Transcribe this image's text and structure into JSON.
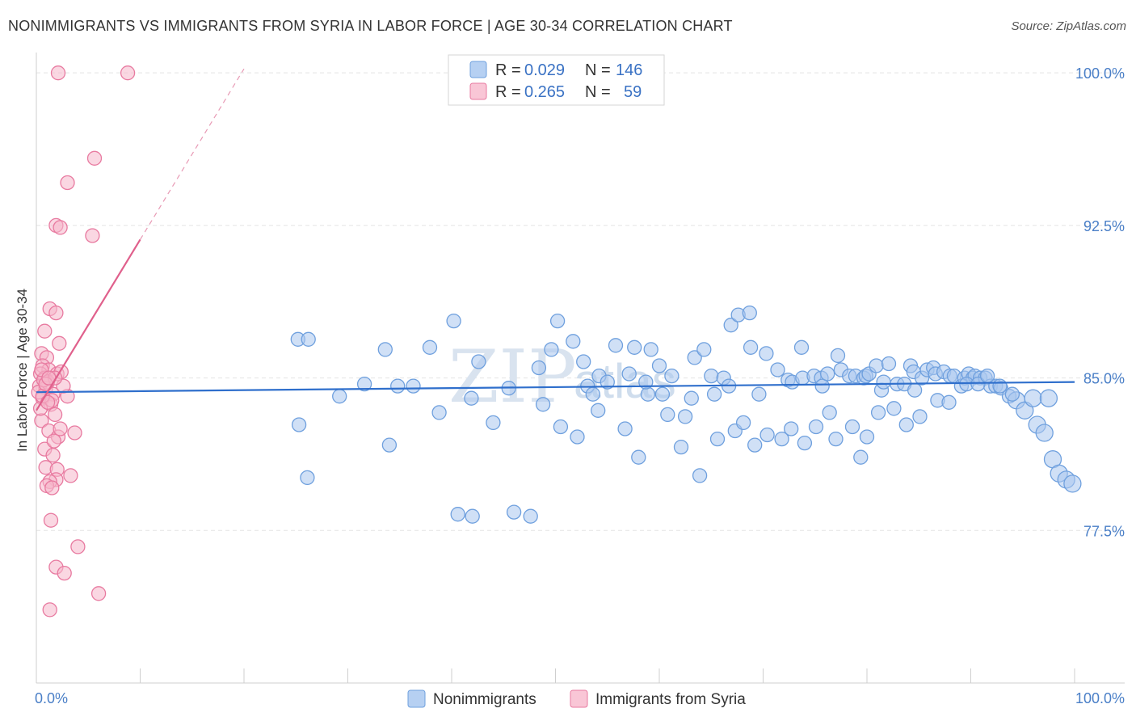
{
  "chart_data": {
    "type": "scatter",
    "title": "NONIMMIGRANTS VS IMMIGRANTS FROM SYRIA IN LABOR FORCE | AGE 30-34 CORRELATION CHART",
    "source": "Source: ZipAtlas.com",
    "ylabel": "In Labor Force | Age 30-34",
    "xlabel": "",
    "xlim": [
      0,
      100
    ],
    "ylim": [
      70.0,
      101.0
    ],
    "x_tick_labels": [
      "0.0%",
      "100.0%"
    ],
    "y_ticks": [
      77.5,
      85.0,
      92.5,
      100.0
    ],
    "y_tick_labels": [
      "77.5%",
      "85.0%",
      "92.5%",
      "100.0%"
    ],
    "watermark": {
      "main": "ZIP",
      "sub": "atlas"
    },
    "legend": [
      {
        "series": "Nonimmigrants",
        "r_label": "R =",
        "r": "0.029",
        "n_label": "N =",
        "n": "146"
      },
      {
        "series": "Immigrants from Syria",
        "r_label": "R =",
        "r": "0.265",
        "n_label": "N =",
        "n": "59"
      }
    ],
    "series": [
      {
        "name": "Nonimmigrants",
        "color": "#6fa0de",
        "fill": "#a9c7ee",
        "trend": {
          "x": [
            0,
            100
          ],
          "y": [
            84.3,
            84.8
          ]
        },
        "points": [
          [
            25.3,
            82.7
          ],
          [
            25.2,
            86.9
          ],
          [
            26.1,
            80.1
          ],
          [
            26.2,
            86.9
          ],
          [
            29.2,
            84.1
          ],
          [
            31.6,
            84.7
          ],
          [
            34.0,
            81.7
          ],
          [
            34.8,
            84.6
          ],
          [
            37.9,
            86.5
          ],
          [
            40.2,
            87.8
          ],
          [
            40.6,
            78.3
          ],
          [
            41.9,
            84.0
          ],
          [
            42.0,
            78.2
          ],
          [
            44.0,
            82.8
          ],
          [
            46.0,
            78.4
          ],
          [
            47.6,
            78.2
          ],
          [
            48.4,
            85.5
          ],
          [
            49.6,
            86.4
          ],
          [
            50.2,
            87.8
          ],
          [
            51.7,
            86.8
          ],
          [
            52.7,
            85.8
          ],
          [
            53.1,
            84.6
          ],
          [
            53.6,
            84.2
          ],
          [
            54.2,
            85.1
          ],
          [
            55.0,
            84.8
          ],
          [
            55.8,
            86.6
          ],
          [
            57.1,
            85.2
          ],
          [
            57.6,
            86.5
          ],
          [
            58.9,
            84.2
          ],
          [
            59.2,
            86.4
          ],
          [
            60.3,
            84.2
          ],
          [
            61.2,
            85.1
          ],
          [
            62.5,
            83.1
          ],
          [
            63.1,
            84.0
          ],
          [
            63.4,
            86.0
          ],
          [
            64.3,
            86.4
          ],
          [
            65.0,
            85.1
          ],
          [
            65.3,
            84.2
          ],
          [
            66.2,
            85.0
          ],
          [
            66.9,
            87.6
          ],
          [
            67.6,
            88.1
          ],
          [
            68.7,
            88.2
          ],
          [
            68.8,
            86.5
          ],
          [
            69.6,
            84.2
          ],
          [
            70.3,
            86.2
          ],
          [
            71.4,
            85.4
          ],
          [
            72.4,
            84.9
          ],
          [
            72.8,
            84.8
          ],
          [
            73.7,
            86.5
          ],
          [
            73.8,
            85.0
          ],
          [
            74.9,
            85.1
          ],
          [
            75.6,
            85.0
          ],
          [
            75.7,
            84.6
          ],
          [
            76.2,
            85.2
          ],
          [
            77.2,
            86.1
          ],
          [
            77.5,
            85.4
          ],
          [
            78.3,
            85.1
          ],
          [
            78.9,
            85.1
          ],
          [
            79.7,
            85.0
          ],
          [
            79.9,
            85.1
          ],
          [
            80.2,
            85.2
          ],
          [
            80.9,
            85.6
          ],
          [
            81.4,
            84.4
          ],
          [
            81.6,
            84.8
          ],
          [
            82.1,
            85.7
          ],
          [
            82.9,
            84.7
          ],
          [
            83.6,
            84.7
          ],
          [
            84.2,
            85.6
          ],
          [
            84.5,
            85.3
          ],
          [
            85.3,
            85.0
          ],
          [
            85.8,
            85.4
          ],
          [
            86.4,
            85.5
          ],
          [
            86.6,
            85.2
          ],
          [
            87.4,
            85.3
          ],
          [
            88.0,
            85.1
          ],
          [
            88.4,
            85.1
          ],
          [
            89.1,
            84.6
          ],
          [
            89.4,
            85.0
          ],
          [
            89.8,
            85.2
          ],
          [
            90.2,
            85.0
          ],
          [
            90.4,
            85.1
          ],
          [
            90.9,
            85.0
          ],
          [
            91.4,
            85.0
          ],
          [
            91.9,
            84.6
          ],
          [
            92.4,
            84.6
          ],
          [
            92.9,
            84.5
          ],
          [
            93.7,
            84.1
          ],
          [
            94.4,
            83.9
          ],
          [
            95.2,
            83.4
          ],
          [
            96.4,
            82.7
          ],
          [
            97.1,
            82.3
          ],
          [
            97.9,
            81.0
          ],
          [
            98.5,
            80.3
          ],
          [
            99.2,
            80.0
          ],
          [
            99.8,
            79.8
          ],
          [
            33.6,
            86.4
          ],
          [
            36.3,
            84.6
          ],
          [
            38.8,
            83.3
          ],
          [
            42.6,
            85.8
          ],
          [
            45.5,
            84.5
          ],
          [
            48.8,
            83.7
          ],
          [
            50.5,
            82.6
          ],
          [
            52.1,
            82.1
          ],
          [
            54.1,
            83.4
          ],
          [
            56.7,
            82.5
          ],
          [
            58.0,
            81.1
          ],
          [
            60.8,
            83.2
          ],
          [
            62.1,
            81.6
          ],
          [
            63.9,
            80.2
          ],
          [
            65.6,
            82.0
          ],
          [
            67.3,
            82.4
          ],
          [
            68.1,
            82.8
          ],
          [
            69.2,
            81.7
          ],
          [
            70.4,
            82.2
          ],
          [
            71.8,
            82.0
          ],
          [
            72.7,
            82.5
          ],
          [
            74.0,
            81.8
          ],
          [
            75.1,
            82.6
          ],
          [
            76.4,
            83.3
          ],
          [
            77.0,
            82.0
          ],
          [
            78.6,
            82.6
          ],
          [
            79.4,
            81.1
          ],
          [
            80.0,
            82.1
          ],
          [
            81.1,
            83.3
          ],
          [
            82.6,
            83.5
          ],
          [
            83.8,
            82.7
          ],
          [
            84.6,
            84.4
          ],
          [
            85.1,
            83.1
          ],
          [
            86.8,
            83.9
          ],
          [
            87.9,
            83.8
          ],
          [
            89.6,
            84.7
          ],
          [
            90.7,
            84.7
          ],
          [
            91.6,
            85.1
          ],
          [
            92.8,
            84.6
          ],
          [
            94.0,
            84.2
          ],
          [
            96.0,
            84.0
          ],
          [
            97.5,
            84.0
          ],
          [
            58.7,
            84.8
          ],
          [
            60.0,
            85.6
          ],
          [
            66.7,
            84.6
          ]
        ]
      },
      {
        "name": "Immigrants from Syria",
        "color": "#e87aa0",
        "fill": "#f6b6cb",
        "trend": {
          "x": [
            0,
            10
          ],
          "y": [
            83.4,
            91.8
          ]
        },
        "trend_dashed": {
          "x": [
            10,
            20
          ],
          "y": [
            91.8,
            100.2
          ]
        },
        "points": [
          [
            2.1,
            100.0
          ],
          [
            8.8,
            100.0
          ],
          [
            5.6,
            95.8
          ],
          [
            3.0,
            94.6
          ],
          [
            1.9,
            92.5
          ],
          [
            2.3,
            92.4
          ],
          [
            5.4,
            92.0
          ],
          [
            1.3,
            88.4
          ],
          [
            1.9,
            88.2
          ],
          [
            0.8,
            87.3
          ],
          [
            2.2,
            86.7
          ],
          [
            0.5,
            86.2
          ],
          [
            1.0,
            86.0
          ],
          [
            0.6,
            85.6
          ],
          [
            1.2,
            85.4
          ],
          [
            2.0,
            85.2
          ],
          [
            0.4,
            85.2
          ],
          [
            0.8,
            85.0
          ],
          [
            1.1,
            84.8
          ],
          [
            0.3,
            84.6
          ],
          [
            0.9,
            84.5
          ],
          [
            2.4,
            85.3
          ],
          [
            1.6,
            84.2
          ],
          [
            0.6,
            84.0
          ],
          [
            0.2,
            84.3
          ],
          [
            3.0,
            84.1
          ],
          [
            1.4,
            83.7
          ],
          [
            1.8,
            83.2
          ],
          [
            0.5,
            82.9
          ],
          [
            1.2,
            82.4
          ],
          [
            2.1,
            82.1
          ],
          [
            3.7,
            82.3
          ],
          [
            0.8,
            81.5
          ],
          [
            1.6,
            81.2
          ],
          [
            0.9,
            80.6
          ],
          [
            2.0,
            80.5
          ],
          [
            3.3,
            80.2
          ],
          [
            1.9,
            80.0
          ],
          [
            1.3,
            79.9
          ],
          [
            1.0,
            79.7
          ],
          [
            1.5,
            79.6
          ],
          [
            1.4,
            78.0
          ],
          [
            4.0,
            76.7
          ],
          [
            1.9,
            75.7
          ],
          [
            2.7,
            75.4
          ],
          [
            6.0,
            74.4
          ],
          [
            1.3,
            73.6
          ],
          [
            0.7,
            84.9
          ],
          [
            1.5,
            83.9
          ],
          [
            2.6,
            84.6
          ],
          [
            0.4,
            83.5
          ],
          [
            1.8,
            85.0
          ],
          [
            0.6,
            84.1
          ],
          [
            1.1,
            83.8
          ],
          [
            2.3,
            82.5
          ],
          [
            0.9,
            84.7
          ],
          [
            1.7,
            81.9
          ],
          [
            0.5,
            85.4
          ],
          [
            1.2,
            85.0
          ]
        ]
      }
    ]
  }
}
